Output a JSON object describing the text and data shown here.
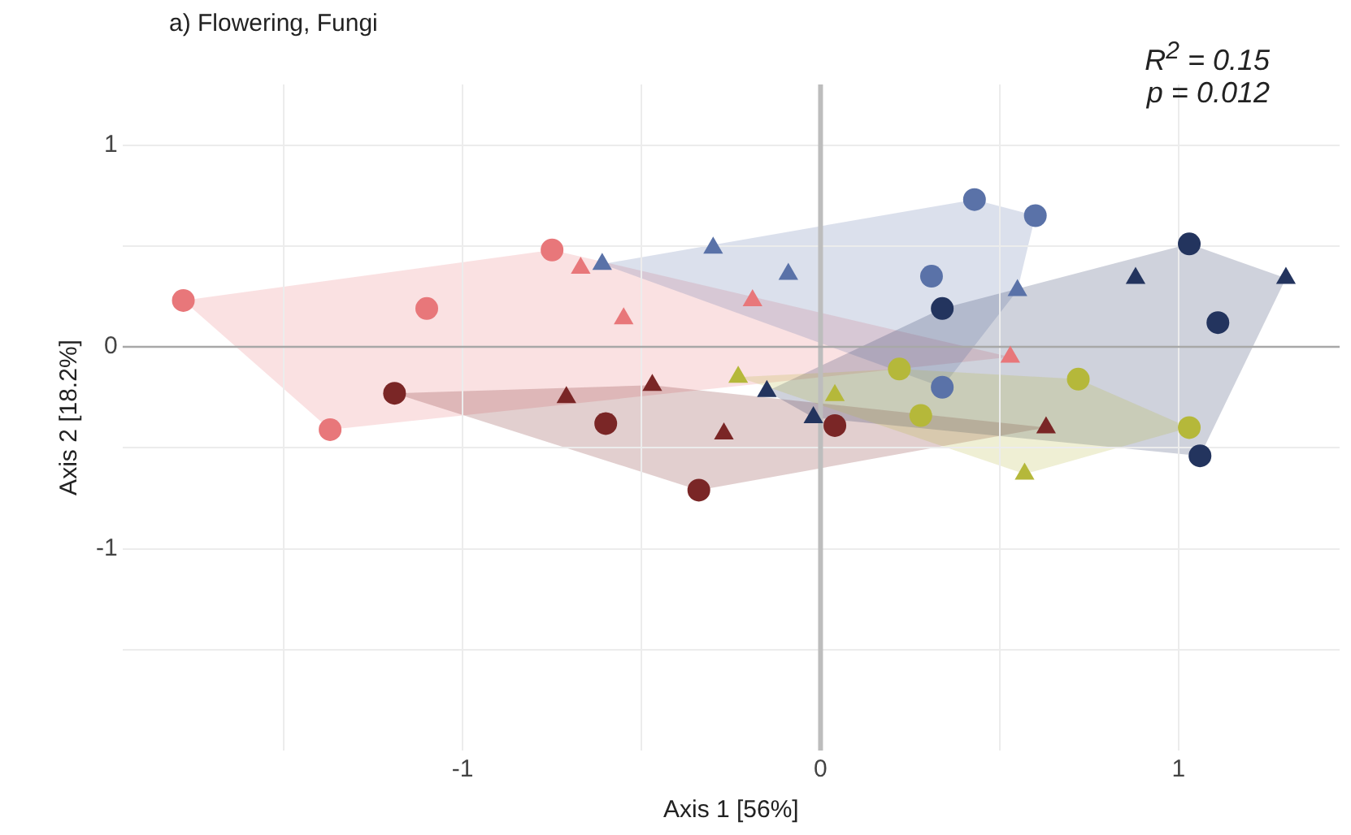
{
  "chart_data": {
    "type": "scatter",
    "title": "a) Flowering, Fungi",
    "xlabel": "Axis 1 [56%]",
    "ylabel": "Axis 2 [18.2%]",
    "annotations": [
      "R$^{2}$ = 0.15",
      "p = 0.012"
    ],
    "xlim": [
      -1.95,
      1.45
    ],
    "ylim": [
      -2.0,
      1.3
    ],
    "xticks": [
      {
        "value": -1.5,
        "label": null
      },
      -1,
      {
        "value": -0.5,
        "label": null
      },
      0,
      {
        "value": 0.5,
        "label": null
      },
      1
    ],
    "yticks": [
      {
        "value": -1.5,
        "label": null
      },
      -1,
      {
        "value": -0.5,
        "label": null
      },
      0,
      {
        "value": 0.5,
        "label": null
      },
      1
    ],
    "grid": true,
    "legend": false,
    "ref_lines": [
      {
        "axis": "x",
        "value": 0,
        "color": "#bdbdbd"
      },
      {
        "axis": "y",
        "value": 0,
        "color": "#a8a8a8"
      }
    ],
    "series": [
      {
        "color": "#e8777a",
        "marker": "circle",
        "x": [
          -1.78,
          -0.75,
          -1.1,
          -1.37
        ],
        "values": [
          0.23,
          0.48,
          0.19,
          -0.41
        ]
      },
      {
        "color": "#e8777a",
        "marker": "triangle",
        "x": [
          -0.67,
          -0.55,
          -0.19,
          0.53
        ],
        "values": [
          0.39,
          0.14,
          0.23,
          -0.05
        ]
      },
      {
        "color": "#7a2626",
        "marker": "circle",
        "x": [
          -1.19,
          -0.6,
          -0.34,
          0.04
        ],
        "values": [
          -0.23,
          -0.38,
          -0.71,
          -0.39
        ]
      },
      {
        "color": "#7a2626",
        "marker": "triangle",
        "x": [
          -0.71,
          -0.47,
          -0.27,
          0.63
        ],
        "values": [
          -0.25,
          -0.19,
          -0.43,
          -0.4
        ]
      },
      {
        "color": "#5a72a8",
        "marker": "circle",
        "x": [
          0.43,
          0.6,
          0.31,
          0.34
        ],
        "values": [
          0.73,
          0.65,
          0.35,
          -0.2
        ]
      },
      {
        "color": "#5a72a8",
        "marker": "triangle",
        "x": [
          -0.61,
          -0.3,
          -0.09,
          0.55
        ],
        "values": [
          0.41,
          0.49,
          0.36,
          0.28
        ]
      },
      {
        "color": "#23345e",
        "marker": "circle",
        "x": [
          0.34,
          1.03,
          1.11,
          1.06
        ],
        "values": [
          0.19,
          0.51,
          0.12,
          -0.54
        ]
      },
      {
        "color": "#23345e",
        "marker": "triangle",
        "x": [
          0.88,
          1.3,
          -0.15,
          -0.02
        ],
        "values": [
          0.34,
          0.34,
          -0.22,
          -0.35
        ]
      },
      {
        "color": "#b5b83a",
        "marker": "circle",
        "x": [
          0.22,
          0.72,
          0.28,
          1.03
        ],
        "values": [
          -0.11,
          -0.16,
          -0.34,
          -0.4
        ]
      },
      {
        "color": "#b5b83a",
        "marker": "triangle",
        "x": [
          -0.23,
          0.04,
          0.57
        ],
        "values": [
          -0.15,
          -0.24,
          -0.63
        ]
      }
    ]
  }
}
